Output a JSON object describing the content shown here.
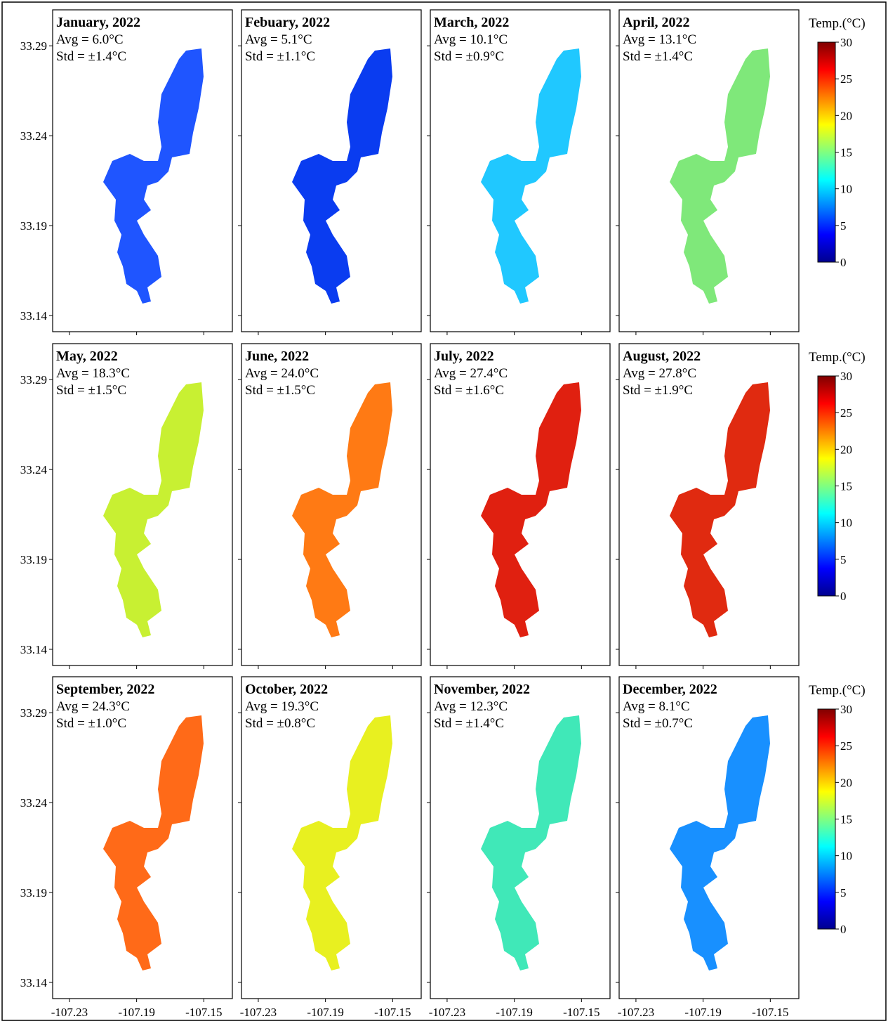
{
  "panels": [
    {
      "title": "January, 2022",
      "avg": "Avg = 6.0°C",
      "std": "Std = ±1.4°C",
      "color": "#1f55ff"
    },
    {
      "title": "Febuary, 2022",
      "avg": "Avg = 5.1°C",
      "std": "Std = ±1.1°C",
      "color": "#0a3cf0"
    },
    {
      "title": "March, 2022",
      "avg": "Avg = 10.1°C",
      "std": "Std = ±0.9°C",
      "color": "#20c8ff"
    },
    {
      "title": "April, 2022",
      "avg": "Avg = 13.1°C",
      "std": "Std = ±1.4°C",
      "color": "#7fe87a"
    },
    {
      "title": "May, 2022",
      "avg": "Avg = 18.3°C",
      "std": "Std = ±1.5°C",
      "color": "#c8f032"
    },
    {
      "title": "June, 2022",
      "avg": "Avg = 24.0°C",
      "std": "Std = ±1.5°C",
      "color": "#ff7a14"
    },
    {
      "title": "July, 2022",
      "avg": "Avg = 27.4°C",
      "std": "Std = ±1.6°C",
      "color": "#e02010"
    },
    {
      "title": "August, 2022",
      "avg": "Avg = 27.8°C",
      "std": "Std = ±1.9°C",
      "color": "#e02a10"
    },
    {
      "title": "September, 2022",
      "avg": "Avg = 24.3°C",
      "std": "Std = ±1.0°C",
      "color": "#ff6a18"
    },
    {
      "title": "October, 2022",
      "avg": "Avg = 19.3°C",
      "std": "Std = ±0.8°C",
      "color": "#e8f020"
    },
    {
      "title": "November, 2022",
      "avg": "Avg = 12.3°C",
      "std": "Std = ±1.4°C",
      "color": "#40e8b8"
    },
    {
      "title": "December, 2022",
      "avg": "Avg = 8.1°C",
      "std": "Std = ±0.7°C",
      "color": "#1890ff"
    }
  ],
  "axes": {
    "xlim": [
      -107.24,
      -107.133
    ],
    "ylim": [
      33.131,
      33.31
    ],
    "xticks": [
      -107.23,
      -107.19,
      -107.15
    ],
    "yticks": [
      33.29,
      33.24,
      33.19,
      33.14
    ]
  },
  "colorbar": {
    "label": "Temp.(°C)",
    "lim": [
      0,
      30
    ],
    "ticks": [
      0,
      5,
      10,
      15,
      20,
      25,
      30
    ],
    "colormap": [
      "#00008f",
      "#0000ff",
      "#0080ff",
      "#00ffff",
      "#80ff80",
      "#ffff00",
      "#ff8000",
      "#ff0000",
      "#800000"
    ]
  }
}
